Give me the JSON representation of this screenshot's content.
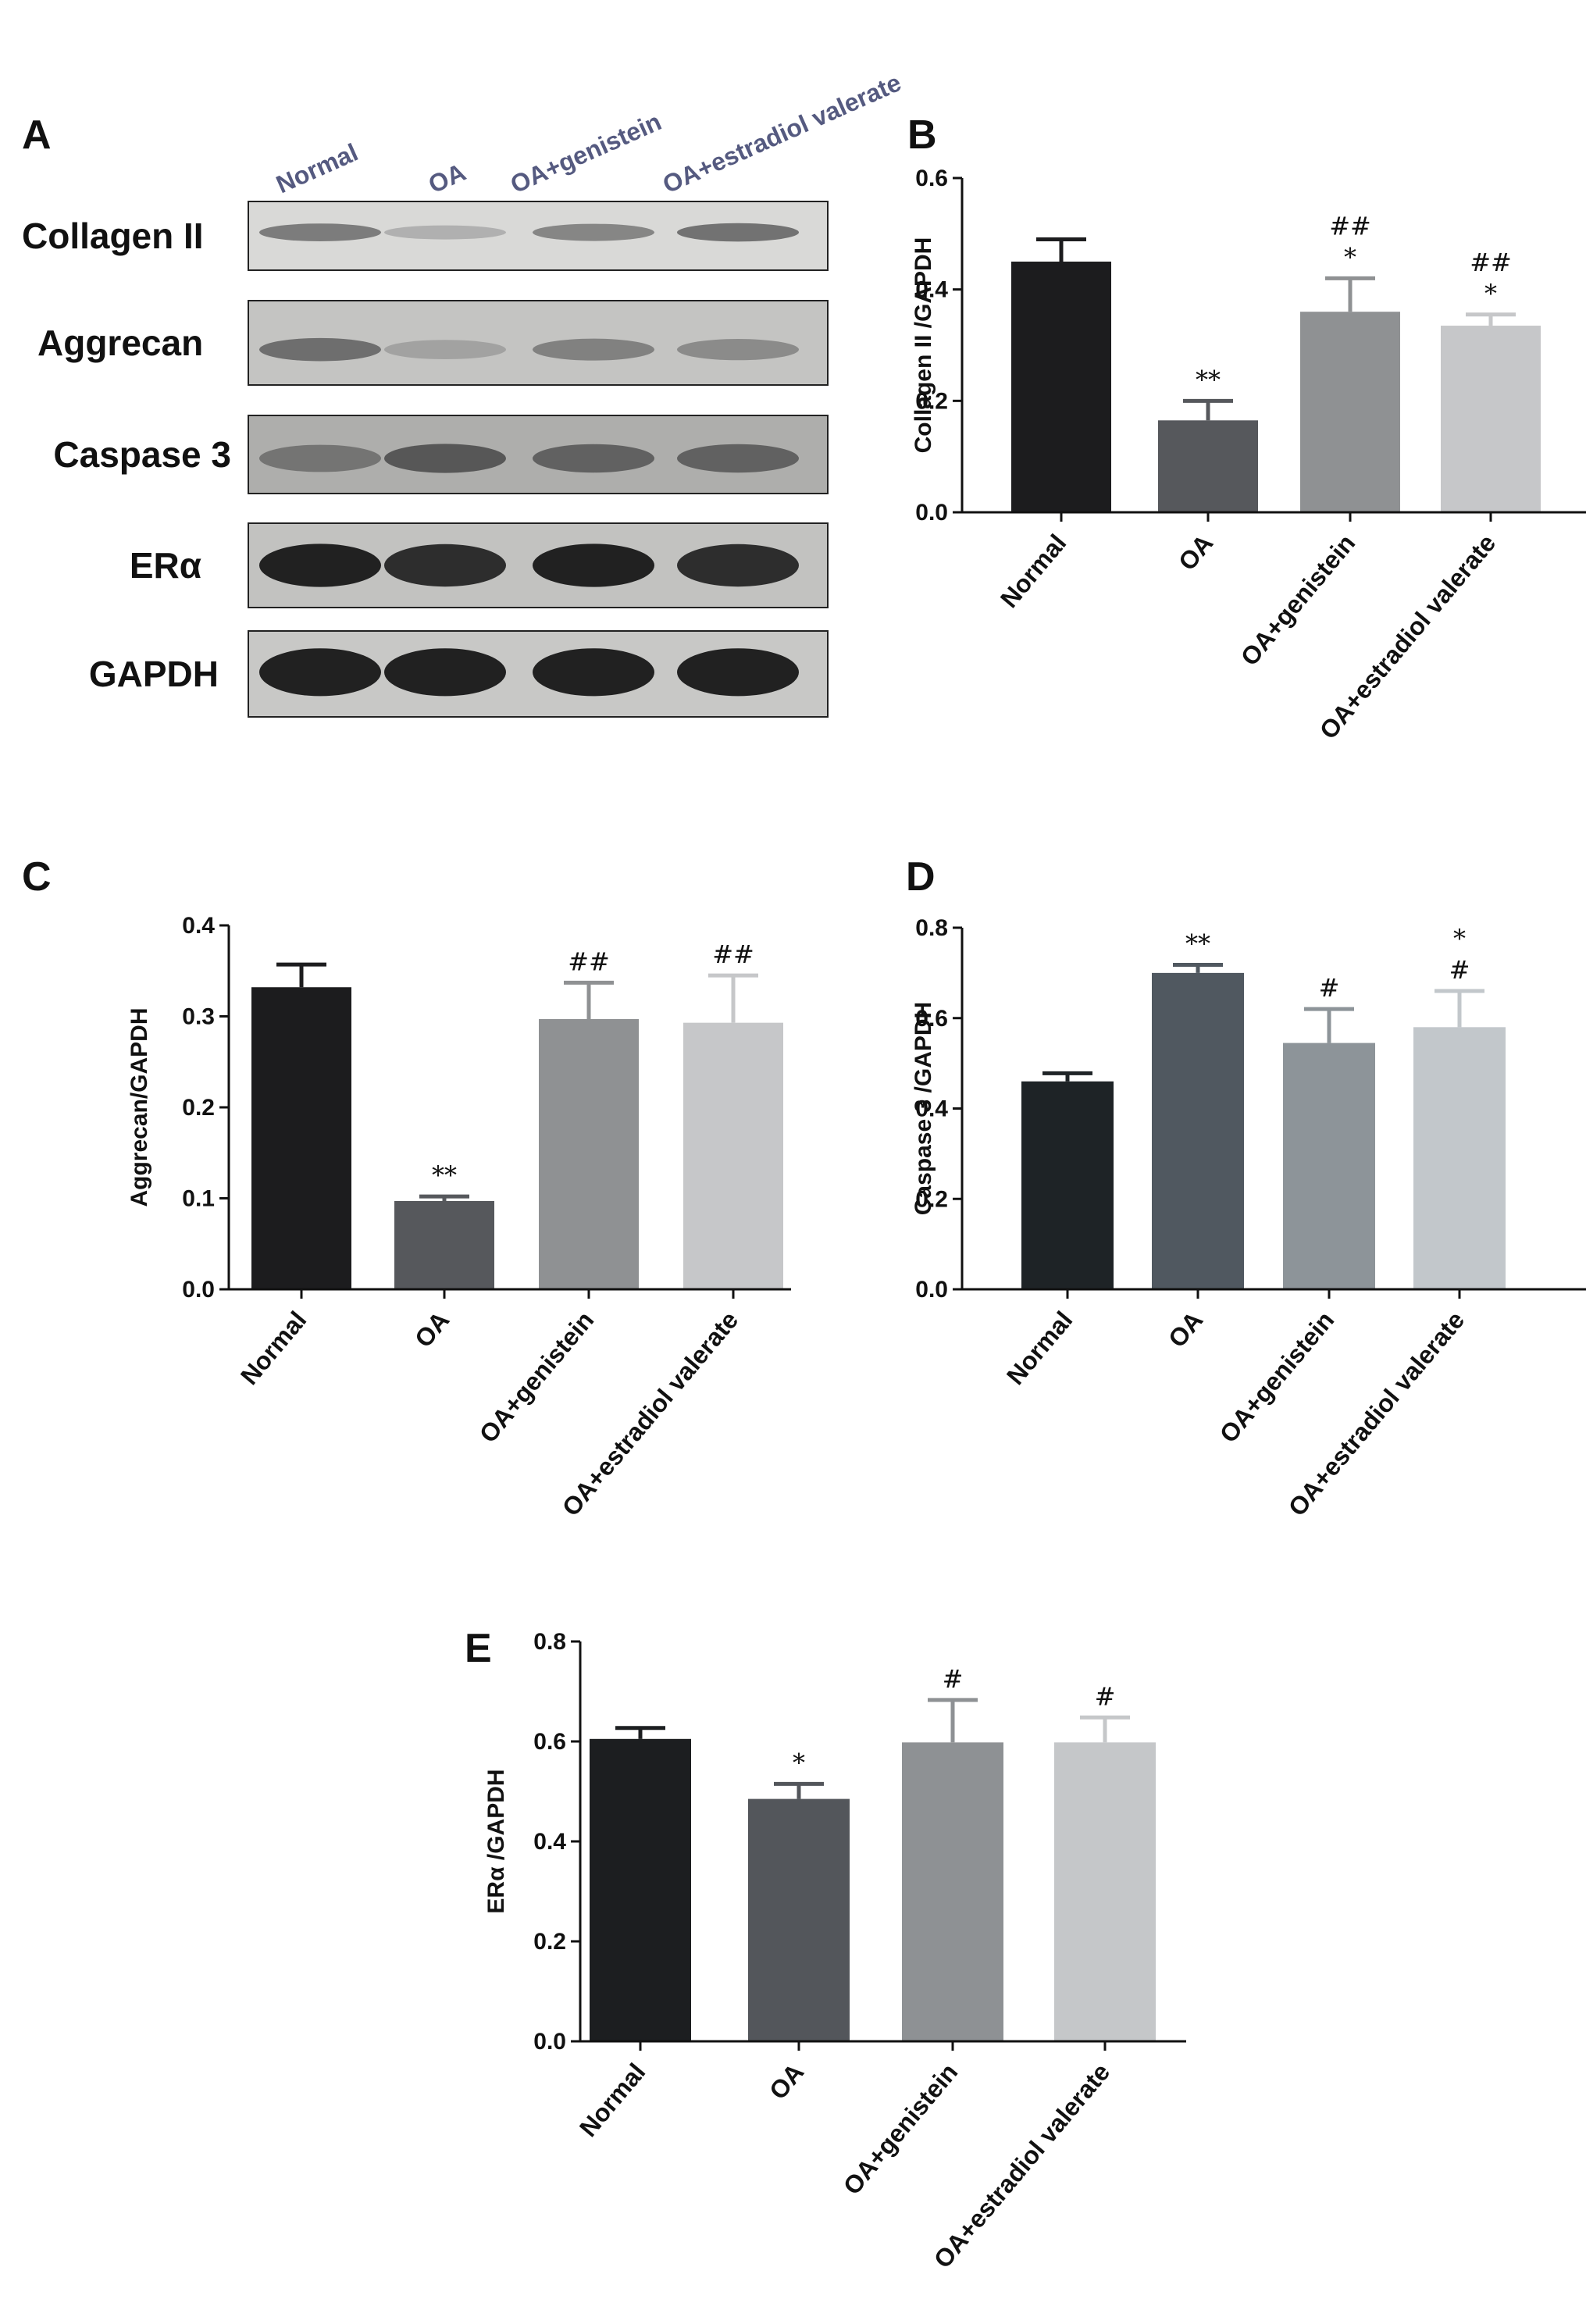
{
  "panel_a": {
    "letter": "A",
    "lanes": [
      "Normal",
      "OA",
      "OA+genistein",
      "OA+estradiol valerate"
    ],
    "blots": [
      {
        "name": "Collagen II",
        "intensity": [
          0.55,
          0.25,
          0.5,
          0.6
        ]
      },
      {
        "name": "Aggrecan",
        "intensity": [
          0.6,
          0.3,
          0.5,
          0.45
        ]
      },
      {
        "name": "Caspase 3",
        "intensity": [
          0.55,
          0.7,
          0.65,
          0.65
        ]
      },
      {
        "name": "ERα",
        "intensity": [
          0.95,
          0.9,
          0.95,
          0.9
        ]
      },
      {
        "name": "GAPDH",
        "intensity": [
          0.95,
          0.95,
          0.95,
          0.95
        ]
      }
    ]
  },
  "chart_data": [
    {
      "panel": "B",
      "type": "bar",
      "categories": [
        "Normal",
        "OA",
        "OA+genistein",
        "OA+estradiol valerate"
      ],
      "values": [
        0.45,
        0.165,
        0.36,
        0.335
      ],
      "errors": [
        0.04,
        0.035,
        0.06,
        0.02
      ],
      "annotations": [
        [
          ""
        ],
        [
          "**"
        ],
        [
          "*",
          "##"
        ],
        [
          "*",
          "##"
        ]
      ],
      "ylabel": "Collagen II /GAPDH",
      "ylim": [
        0,
        0.6
      ],
      "yticks": [
        "0.0",
        "0.2",
        "0.4",
        "0.6"
      ],
      "bar_colors": [
        "#1c1c1e",
        "#56585c",
        "#8f9193",
        "#c6c7c9"
      ]
    },
    {
      "panel": "C",
      "type": "bar",
      "categories": [
        "Normal",
        "OA",
        "OA+genistein",
        "OA+estradiol valerate"
      ],
      "values": [
        0.332,
        0.097,
        0.297,
        0.293
      ],
      "errors": [
        0.025,
        0.005,
        0.04,
        0.052
      ],
      "annotations": [
        [
          ""
        ],
        [
          "**"
        ],
        [
          "##"
        ],
        [
          "##"
        ]
      ],
      "ylabel": "Aggrecan/GAPDH",
      "ylim": [
        0,
        0.4
      ],
      "yticks": [
        "0.0",
        "0.1",
        "0.2",
        "0.3",
        "0.4"
      ],
      "bar_colors": [
        "#1c1c1e",
        "#56585c",
        "#8f9193",
        "#c6c7c9"
      ]
    },
    {
      "panel": "D",
      "type": "bar",
      "categories": [
        "Normal",
        "OA",
        "OA+genistein",
        "OA+estradiol valerate"
      ],
      "values": [
        0.46,
        0.7,
        0.545,
        0.58
      ],
      "errors": [
        0.018,
        0.018,
        0.075,
        0.08
      ],
      "annotations": [
        [
          ""
        ],
        [
          "**"
        ],
        [
          "#"
        ],
        [
          "#",
          "*"
        ]
      ],
      "ylabel": "Caspase  3 /GAPDH",
      "ylim": [
        0,
        0.8
      ],
      "yticks": [
        "0.0",
        "0.2",
        "0.4",
        "0.6",
        "0.8"
      ],
      "bar_colors": [
        "#1e2326",
        "#505860",
        "#8d9499",
        "#c2c7cb"
      ]
    },
    {
      "panel": "E",
      "type": "bar",
      "categories": [
        "Normal",
        "OA",
        "OA+genistein",
        "OA+estradiol valerate"
      ],
      "values": [
        0.605,
        0.485,
        0.598,
        0.598
      ],
      "errors": [
        0.022,
        0.03,
        0.085,
        0.05
      ],
      "annotations": [
        [
          ""
        ],
        [
          "*"
        ],
        [
          "#"
        ],
        [
          "#"
        ]
      ],
      "ylabel": "ERα /GAPDH",
      "ylim": [
        0,
        0.8
      ],
      "yticks": [
        "0.0",
        "0.2",
        "0.4",
        "0.6",
        "0.8"
      ],
      "bar_colors": [
        "#1c1e20",
        "#53565b",
        "#8e9194",
        "#c5c7c9"
      ]
    }
  ]
}
